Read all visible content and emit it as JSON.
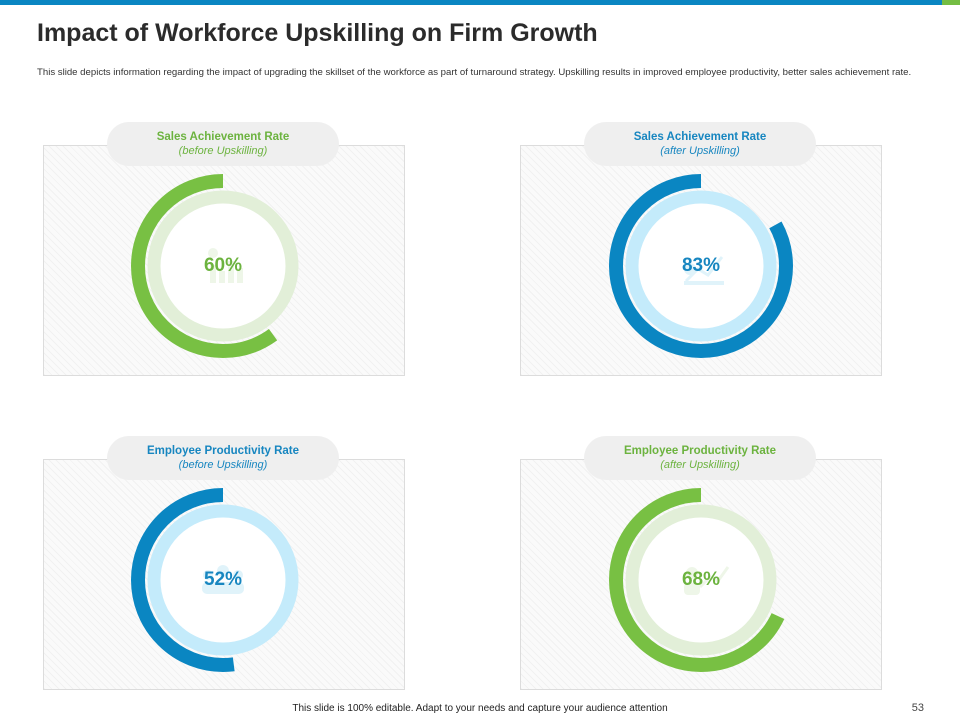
{
  "slide": {
    "title": "Impact of Workforce Upskilling on Firm Growth",
    "description": "This slide depicts information regarding the impact of upgrading the skillset of the workforce as part of turnaround strategy. Upskilling results in improved employee productivity, better sales achievement rate.",
    "footer_note": "This slide is 100% editable.  Adapt to your needs and capture your audience attention",
    "page_number": "53"
  },
  "colors": {
    "brand_blue": "#0a86c2",
    "brand_green": "#74bd43",
    "green_ring": "#78c043",
    "green_track": "#e2efd8",
    "blue_ring": "#0a86c2",
    "blue_track": "#c4ebfb"
  },
  "chart_data": [
    {
      "type": "pie",
      "title": "Sales Achievement Rate",
      "subtitle": "(before Upskilling)",
      "value": 60,
      "label": "60%",
      "color": "green",
      "icon": "bar-chart-people-icon"
    },
    {
      "type": "pie",
      "title": "Sales Achievement Rate",
      "subtitle": "(after Upskilling)",
      "value": 83,
      "label": "83%",
      "color": "blue",
      "icon": "growth-chart-icon"
    },
    {
      "type": "pie",
      "title": "Employee  Productivity Rate",
      "subtitle": "(before Upskilling)",
      "value": 52,
      "label": "52%",
      "color": "blue",
      "icon": "team-icon"
    },
    {
      "type": "pie",
      "title": "Employee  Productivity Rate",
      "subtitle": "(after Upskilling)",
      "value": 68,
      "label": "68%",
      "color": "green",
      "icon": "productivity-icon"
    }
  ]
}
